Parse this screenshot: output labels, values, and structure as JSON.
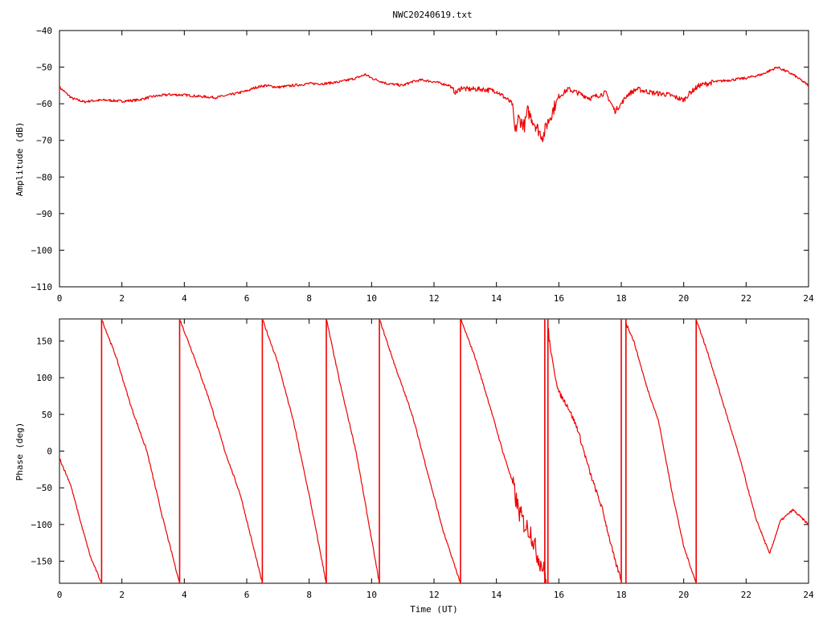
{
  "title": "NWC20240619.txt",
  "chart_data": [
    {
      "type": "line",
      "title": "NWC20240619.txt",
      "xlabel": "",
      "ylabel": "Amplitude (dB)",
      "xlim": [
        0,
        24
      ],
      "ylim": [
        -110,
        -40
      ],
      "xticks": [
        0,
        2,
        4,
        6,
        8,
        10,
        12,
        14,
        16,
        18,
        20,
        22,
        24
      ],
      "yticks": [
        -110,
        -100,
        -90,
        -80,
        -70,
        -60,
        -50,
        -40
      ],
      "grid": false,
      "color": "#ee0000",
      "series": [
        {
          "x": [
            0,
            0.2,
            0.4,
            0.6,
            0.8,
            1.0,
            1.5,
            2.0,
            2.5,
            3.0,
            3.5,
            4.0,
            4.5,
            5.0,
            5.5,
            6.0,
            6.3,
            6.6,
            7.0,
            7.5,
            8.0,
            8.5,
            9.0,
            9.5,
            9.8,
            10.0,
            10.5,
            11.0,
            11.3,
            11.6,
            12.0,
            12.5,
            12.7,
            12.9,
            13.0,
            13.5,
            14.0,
            14.3,
            14.5,
            14.6,
            14.7,
            14.9,
            15.0,
            15.2,
            15.4,
            15.5,
            15.6,
            15.8,
            16.0,
            16.3,
            16.6,
            17.0,
            17.5,
            17.8,
            18.0,
            18.2,
            18.5,
            19.0,
            19.5,
            20.0,
            20.2,
            20.5,
            21.0,
            21.5,
            22.0,
            22.5,
            23.0,
            23.5,
            24.0
          ],
          "y": [
            -55.5,
            -57,
            -58.5,
            -59,
            -59.5,
            -59.2,
            -59,
            -59.3,
            -59,
            -58,
            -57.5,
            -57.6,
            -58,
            -58.3,
            -57.5,
            -56.5,
            -55.5,
            -55,
            -55.5,
            -55,
            -54.5,
            -54.5,
            -54,
            -53,
            -52,
            -53,
            -54.5,
            -55,
            -54,
            -53.5,
            -54,
            -55,
            -57,
            -55.5,
            -56,
            -56,
            -56.5,
            -58.5,
            -60,
            -68,
            -64,
            -66,
            -62,
            -65,
            -68,
            -69,
            -66,
            -62,
            -58,
            -56,
            -57,
            -58.5,
            -57,
            -62,
            -60,
            -57.5,
            -56,
            -57,
            -57.5,
            -59,
            -57,
            -55,
            -54,
            -53.5,
            -53,
            -52,
            -50,
            -52,
            -55
          ]
        }
      ]
    },
    {
      "type": "line",
      "title": "",
      "xlabel": "Time (UT)",
      "ylabel": "Phase (deg)",
      "xlim": [
        0,
        24
      ],
      "ylim": [
        -180,
        180
      ],
      "xticks": [
        0,
        2,
        4,
        6,
        8,
        10,
        12,
        14,
        16,
        18,
        20,
        22,
        24
      ],
      "yticks": [
        -150,
        -100,
        -50,
        0,
        50,
        100,
        150
      ],
      "grid": false,
      "color": "#ee0000",
      "series": [
        {
          "segments": [
            {
              "x": [
                0,
                0.35,
                0.7,
                1.0,
                1.35
              ],
              "y": [
                -10,
                -45,
                -100,
                -145,
                -180
              ]
            },
            {
              "x": [
                1.35,
                1.8,
                2.3,
                2.8,
                3.3,
                3.85
              ],
              "y": [
                180,
                130,
                60,
                0,
                -90,
                -180
              ]
            },
            {
              "x": [
                3.85,
                4.3,
                4.8,
                5.3,
                5.8,
                6.5
              ],
              "y": [
                180,
                130,
                70,
                0,
                -60,
                -180
              ]
            },
            {
              "x": [
                6.5,
                7.0,
                7.5,
                8.0,
                8.55
              ],
              "y": [
                180,
                120,
                40,
                -60,
                -180
              ]
            },
            {
              "x": [
                8.55,
                9.0,
                9.5,
                10.25
              ],
              "y": [
                180,
                90,
                0,
                -180
              ]
            },
            {
              "x": [
                10.25,
                10.8,
                11.3,
                11.8,
                12.3,
                12.85
              ],
              "y": [
                180,
                110,
                50,
                -30,
                -110,
                -180
              ]
            },
            {
              "x": [
                12.85,
                13.3,
                13.8,
                14.2,
                14.5,
                14.7,
                14.9,
                15.1,
                15.3,
                15.5,
                15.6
              ],
              "y": [
                180,
                130,
                60,
                0,
                -40,
                -80,
                -100,
                -110,
                -140,
                -160,
                -175
              ]
            },
            {
              "x": [
                15.65,
                15.8,
                16.0,
                16.3,
                16.6,
                17.0,
                17.4,
                17.8,
                18.0
              ],
              "y": [
                165,
                120,
                80,
                60,
                30,
                -30,
                -80,
                -150,
                -175
              ]
            },
            {
              "x": [
                18.15,
                18.4,
                18.8,
                19.2,
                19.6,
                20.0,
                20.4
              ],
              "y": [
                175,
                150,
                90,
                40,
                -50,
                -130,
                -180
              ]
            },
            {
              "x": [
                20.4,
                20.8,
                21.3,
                21.8,
                22.3,
                22.75,
                23.1,
                23.5,
                24.0
              ],
              "y": [
                180,
                130,
                60,
                -10,
                -90,
                -140,
                -95,
                -80,
                -100
              ]
            }
          ],
          "wraps": [
            1.35,
            3.85,
            6.5,
            8.55,
            10.25,
            12.85,
            15.55,
            15.65,
            18.0,
            18.15,
            20.4
          ]
        }
      ]
    }
  ]
}
